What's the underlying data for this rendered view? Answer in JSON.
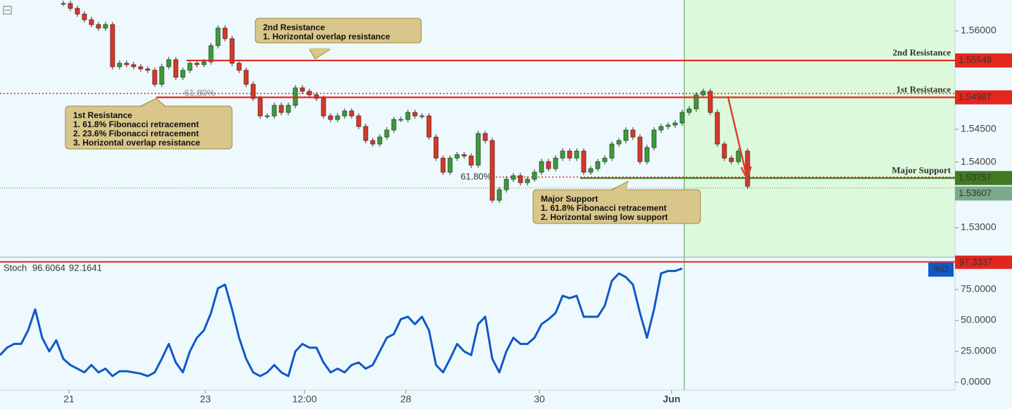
{
  "chart_data": [
    {
      "type": "candlestick",
      "x": [
        9,
        10,
        11,
        12,
        13,
        14,
        15,
        16,
        17,
        18,
        19,
        20,
        21,
        22,
        23,
        24,
        25,
        26,
        27,
        28,
        29,
        30,
        31,
        32,
        33,
        34,
        35,
        36,
        37,
        38,
        39,
        40,
        41,
        42,
        43,
        44,
        45,
        46,
        47,
        48,
        49,
        50,
        51,
        52,
        53,
        54,
        55,
        56,
        57,
        58,
        59,
        60,
        61,
        62,
        63,
        64,
        65,
        66,
        67,
        68,
        69,
        70,
        71,
        72,
        73,
        74,
        75,
        76,
        77,
        78,
        79,
        80,
        81,
        82,
        83,
        84,
        85,
        86,
        87,
        88,
        89,
        90,
        91,
        92,
        93,
        94,
        95,
        96,
        97,
        98,
        99,
        100,
        101,
        102,
        103,
        104,
        105,
        106.3
      ],
      "values": [
        1.56418,
        1.56343,
        1.56257,
        1.56171,
        1.56096,
        1.56043,
        1.56096,
        1.55454,
        1.55507,
        1.55486,
        1.55454,
        1.55421,
        1.554,
        1.55186,
        1.55454,
        1.55561,
        1.55293,
        1.554,
        1.55507,
        1.55486,
        1.55529,
        1.55775,
        1.56043,
        1.55882,
        1.55507,
        1.554,
        1.55186,
        1.54971,
        1.54704,
        1.54704,
        1.54865,
        1.54757,
        1.54865,
        1.55132,
        1.55079,
        1.55025,
        1.54971,
        1.54704,
        1.5465,
        1.54704,
        1.54779,
        1.54704,
        1.54543,
        1.54329,
        1.54275,
        1.54382,
        1.54489,
        1.5465,
        1.5465,
        1.54757,
        1.54704,
        1.54704,
        1.54382,
        1.54061,
        1.53846,
        1.54061,
        1.54114,
        1.54093,
        1.53954,
        1.54436,
        1.54329,
        1.53418,
        1.53579,
        1.53739,
        1.53793,
        1.53686,
        1.53739,
        1.53846,
        1.54007,
        1.539,
        1.54061,
        1.54168,
        1.54061,
        1.54168,
        1.53846,
        1.539,
        1.54007,
        1.54061,
        1.54275,
        1.54329,
        1.54489,
        1.54382,
        1.54007,
        1.54222,
        1.54489,
        1.54543,
        1.54564,
        1.54596,
        1.54757,
        1.54811,
        1.55025,
        1.55079,
        1.54757,
        1.54275,
        1.54061,
        1.54007,
        1.54168,
        1.53632
      ],
      "xlim": [
        0,
        135.8
      ],
      "ylim": [
        1.52561,
        1.56471
      ],
      "yticks": [
        {
          "value": 1.53,
          "label": "1.53000"
        },
        {
          "value": 1.54,
          "label": "1.54000"
        },
        {
          "value": 1.545,
          "label": "1.54500"
        },
        {
          "value": 1.56,
          "label": "1.56000"
        }
      ],
      "levels": [
        {
          "name": "2nd Resistance",
          "value": 1.55549,
          "color": "#e3271f"
        },
        {
          "name": "1st Resistance",
          "value": 1.54987,
          "color": "#e3271f"
        },
        {
          "name": "Major Support",
          "value": 1.53757,
          "color": "#3f7a22"
        }
      ],
      "fib_lines": [
        {
          "label": "61.80%",
          "value": 1.55046
        },
        {
          "label": "61.80%",
          "value": 1.53771
        }
      ],
      "price_line": {
        "value": 1.53607
      },
      "annotations": [
        {
          "title": "2nd Resistance",
          "lines": [
            "1. Horizontal overlap resistance"
          ]
        },
        {
          "title": "1st Resistance",
          "lines": [
            "1. 61.8% Fibonacci retracement",
            "2. 23.6% Fibonacci retracement",
            "3. Horizontal overlap resistance"
          ]
        },
        {
          "title": "Major Support",
          "lines": [
            "1. 61.8% Fibonacci retracement",
            "2. Horizontal swing low support"
          ]
        }
      ]
    },
    {
      "type": "line",
      "title": "Stoch",
      "legend_values": [
        96.6064,
        92.1641
      ],
      "x": [
        0,
        1,
        2,
        3,
        4,
        5,
        6,
        7,
        8,
        9,
        10,
        11,
        12,
        13,
        14,
        15,
        16,
        17,
        18,
        19,
        20,
        21,
        22,
        23,
        24,
        25,
        26,
        27,
        28,
        29,
        30,
        31,
        32,
        33,
        34,
        35,
        36,
        37,
        38,
        39,
        40,
        41,
        42,
        43,
        44,
        45,
        46,
        47,
        48,
        49,
        50,
        51,
        52,
        53,
        54,
        55,
        56,
        57,
        58,
        59,
        60,
        61,
        62,
        63,
        64,
        65,
        66,
        67,
        68,
        69,
        70,
        71,
        72,
        73,
        74,
        75,
        76,
        77,
        78,
        79,
        80,
        81,
        82,
        83,
        84,
        85,
        86,
        87,
        88,
        89,
        90,
        91,
        92,
        93,
        94,
        95,
        96,
        97
      ],
      "series": [
        {
          "name": "%D",
          "color": "#1158c7",
          "values": [
            22,
            28,
            31,
            31,
            42,
            59,
            36,
            25,
            34,
            19,
            14,
            11,
            8,
            14,
            8,
            11,
            5,
            9,
            9,
            8,
            7,
            5,
            8,
            19,
            31,
            16,
            8,
            25,
            36,
            42,
            56,
            76,
            79,
            59,
            36,
            19,
            8,
            5,
            8,
            14,
            8,
            5,
            25,
            31,
            28,
            28,
            16,
            8,
            11,
            8,
            14,
            16,
            11,
            14,
            25,
            36,
            39,
            51,
            53,
            47,
            53,
            42,
            14,
            8,
            19,
            31,
            25,
            22,
            47,
            53,
            19,
            8,
            25,
            36,
            31,
            31,
            36,
            47,
            51,
            56,
            70,
            68,
            70,
            53,
            53,
            53,
            62,
            82,
            88,
            85,
            79,
            56,
            36,
            59,
            88,
            90,
            90,
            92
          ]
        }
      ],
      "level": {
        "value": 97.3337
      },
      "xlim": [
        0,
        135.8
      ],
      "ylim": [
        -6.25,
        98.86
      ],
      "yticks": [
        {
          "value": 0,
          "label": "0.0000"
        },
        {
          "value": 25,
          "label": "25.0000"
        },
        {
          "value": 50,
          "label": "50.0000"
        },
        {
          "value": 75,
          "label": "75.0000"
        }
      ],
      "xticks": [
        {
          "value": 9.8,
          "label": "21"
        },
        {
          "value": 29.2,
          "label": "23"
        },
        {
          "value": 43.3,
          "label": "12:00"
        },
        {
          "value": 57.7,
          "label": "28"
        },
        {
          "value": 76.7,
          "label": "30"
        },
        {
          "value": 95.5,
          "label": "Jun"
        }
      ]
    }
  ]
}
